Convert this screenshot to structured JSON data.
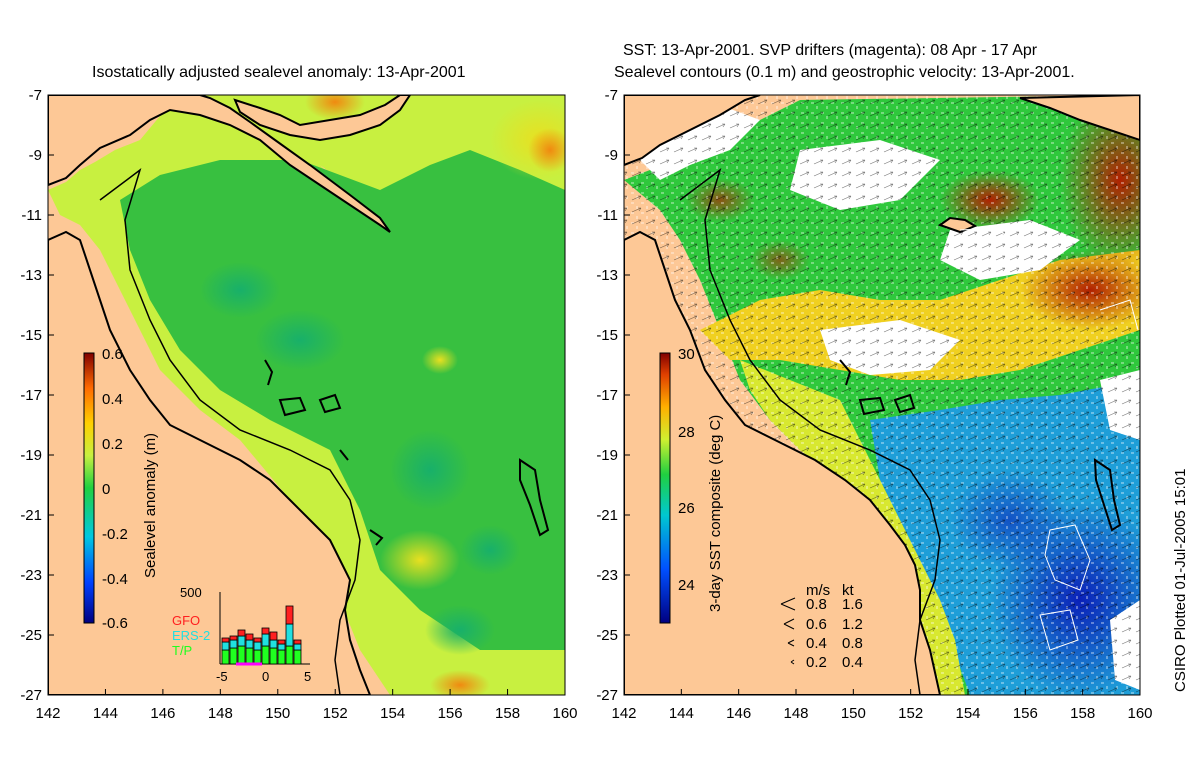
{
  "left_panel": {
    "title": "Isostatically adjusted sealevel anomaly: 13-Apr-2001",
    "colorbar": {
      "label": "Sealevel anomaly (m)",
      "ticks": [
        "0.6",
        "0.4",
        "0.2",
        "0",
        "-0.2",
        "-0.4",
        "-0.6"
      ]
    },
    "inset": {
      "ymax_label": "500",
      "legend": [
        "GFO",
        "ERS-2",
        "T/P"
      ],
      "legend_colors": [
        "#ff2020",
        "#20e0e0",
        "#20ff20"
      ],
      "x_ticks": [
        "-5",
        "0",
        "5"
      ]
    }
  },
  "right_panel": {
    "title_line1": "SST: 13-Apr-2001. SVP drifters (magenta): 08 Apr - 17 Apr",
    "title_line2": "Sealevel contours (0.1 m) and geostrophic velocity: 13-Apr-2001.",
    "colorbar": {
      "label": "3-day SST composite (deg C)",
      "ticks": [
        "30",
        "28",
        "26",
        "24"
      ]
    },
    "speed_legend": {
      "header_ms": "m/s",
      "header_kt": "kt",
      "rows": [
        {
          "ms": "0.8",
          "kt": "1.6"
        },
        {
          "ms": "0.6",
          "kt": "1.2"
        },
        {
          "ms": "0.4",
          "kt": "0.8"
        },
        {
          "ms": "0.2",
          "kt": "0.4"
        }
      ]
    }
  },
  "axes": {
    "lat_ticks": [
      "-7",
      "-9",
      "-11",
      "-13",
      "-15",
      "-17",
      "-19",
      "-21",
      "-23",
      "-25",
      "-27"
    ],
    "lon_ticks": [
      "142",
      "144",
      "146",
      "148",
      "150",
      "152",
      "154",
      "156",
      "158",
      "160"
    ]
  },
  "footer": "CSIRO Plotted 01-Jul-2005 15:01",
  "colors": {
    "land": "#fdc896",
    "ocean_main": "#2fc83c",
    "ocean_shelf": "#c8f040",
    "sst_warm": "#cc3300",
    "sst_cool": "#0a40d0"
  }
}
